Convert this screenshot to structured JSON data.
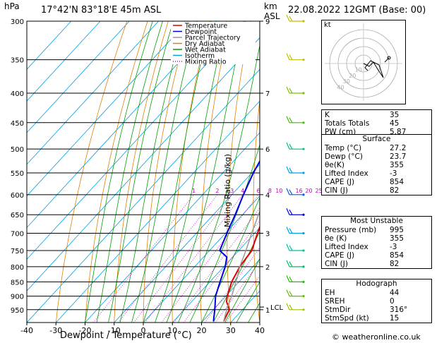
{
  "header": {
    "pressure_unit": "hPa",
    "location": "17°42'N  83°18'E  45m  ASL",
    "km_label": "km",
    "asl_label": "ASL",
    "datetime": "22.08.2022  12GMT  (Base: 00)"
  },
  "legend": [
    {
      "label": "Temperature",
      "color": "#e00000",
      "style": "solid"
    },
    {
      "label": "Dewpoint",
      "color": "#0000e0",
      "style": "solid"
    },
    {
      "label": "Parcel Trajectory",
      "color": "#999999",
      "style": "solid"
    },
    {
      "label": "Dry Adiabat",
      "color": "#e08000",
      "style": "solid"
    },
    {
      "label": "Wet Adiabat",
      "color": "#00a000",
      "style": "solid"
    },
    {
      "label": "Isotherm",
      "color": "#00a0e0",
      "style": "solid"
    },
    {
      "label": "Mixing Ratio",
      "color": "#c000c0",
      "style": "dotted"
    }
  ],
  "chart_data": {
    "type": "line",
    "subtype": "skew-t log-p",
    "xlabel": "Dewpoint / Temperature (°C)",
    "ylabel_left": "hPa",
    "ylabel_right": "Mixing Ratio (g/kg)",
    "x_ticks": [
      "-40",
      "-30",
      "-20",
      "-10",
      "0",
      "10",
      "20",
      "30",
      "40"
    ],
    "x_tick_values": [
      -40,
      -30,
      -20,
      -10,
      0,
      10,
      20,
      30,
      40
    ],
    "pressure_levels": [
      300,
      350,
      400,
      450,
      500,
      550,
      600,
      650,
      700,
      750,
      800,
      850,
      900,
      950
    ],
    "pressure_labels": [
      "300",
      "350",
      "400",
      "450",
      "500",
      "550",
      "600",
      "650",
      "700",
      "750",
      "800",
      "850",
      "900",
      "950"
    ],
    "km_ticks": [
      {
        "p": 300,
        "km": "9"
      },
      {
        "p": 400,
        "km": "7"
      },
      {
        "p": 500,
        "km": "6"
      },
      {
        "p": 600,
        "km": "4"
      },
      {
        "p": 700,
        "km": "3"
      },
      {
        "p": 800,
        "km": "2"
      },
      {
        "p": 950,
        "km": "1"
      }
    ],
    "lcl_label": "LCL",
    "lcl_pressure": 940,
    "mixing_ratio_labels": [
      "1",
      "2",
      "3",
      "4",
      "6",
      "8",
      "10",
      "16",
      "20",
      "25"
    ],
    "mixing_ratio_values": [
      1,
      2,
      3,
      4,
      6,
      8,
      10,
      16,
      20,
      25
    ],
    "series": [
      {
        "name": "Temperature",
        "color": "#e00000",
        "points": [
          [
            995,
            27.2
          ],
          [
            950,
            25.5
          ],
          [
            920,
            22
          ],
          [
            900,
            20.5
          ],
          [
            850,
            17.5
          ],
          [
            800,
            15.5
          ],
          [
            750,
            14.5
          ],
          [
            700,
            11
          ],
          [
            650,
            7.5
          ],
          [
            600,
            4
          ],
          [
            550,
            -1
          ],
          [
            500,
            -6
          ],
          [
            450,
            -10.5
          ],
          [
            420,
            -16
          ],
          [
            400,
            -20
          ],
          [
            370,
            -24.5
          ]
        ]
      },
      {
        "name": "Dewpoint",
        "color": "#0000e0",
        "points": [
          [
            995,
            23.7
          ],
          [
            950,
            20.5
          ],
          [
            900,
            16.5
          ],
          [
            850,
            13.5
          ],
          [
            800,
            10.5
          ],
          [
            770,
            8
          ],
          [
            750,
            3.5
          ],
          [
            700,
            0.5
          ],
          [
            650,
            -2.5
          ],
          [
            600,
            -6
          ],
          [
            550,
            -9.5
          ],
          [
            500,
            -12.5
          ],
          [
            450,
            -17
          ],
          [
            420,
            -22
          ],
          [
            400,
            -28
          ],
          [
            380,
            -28
          ],
          [
            360,
            -31
          ],
          [
            320,
            -37
          ],
          [
            300,
            -39
          ]
        ]
      },
      {
        "name": "Parcel Trajectory",
        "color": "#999999",
        "points": [
          [
            995,
            27.2
          ],
          [
            940,
            24
          ],
          [
            900,
            22
          ],
          [
            850,
            19
          ],
          [
            800,
            15.5
          ],
          [
            750,
            12.5
          ],
          [
            700,
            9
          ],
          [
            650,
            5.5
          ],
          [
            600,
            2
          ],
          [
            550,
            -2
          ],
          [
            500,
            -6.5
          ],
          [
            450,
            -12
          ],
          [
            400,
            -18.5
          ],
          [
            370,
            -23
          ]
        ]
      }
    ]
  },
  "hodograph": {
    "label": "kt",
    "ring_labels": [
      "10",
      "20",
      "30",
      "40"
    ]
  },
  "indices": [
    {
      "label": "K",
      "value": "35"
    },
    {
      "label": "Totals Totals",
      "value": "45"
    },
    {
      "label": "PW (cm)",
      "value": "5.87"
    }
  ],
  "surface": {
    "title": "Surface",
    "rows": [
      {
        "label": "Temp (°C)",
        "value": "27.2"
      },
      {
        "label": "Dewp (°C)",
        "value": "23.7"
      },
      {
        "label": "θe(K)",
        "value": "355"
      },
      {
        "label": "Lifted Index",
        "value": "-3"
      },
      {
        "label": "CAPE (J)",
        "value": "854"
      },
      {
        "label": "CIN (J)",
        "value": "82"
      }
    ]
  },
  "most_unstable": {
    "title": "Most Unstable",
    "rows": [
      {
        "label": "Pressure (mb)",
        "value": "995"
      },
      {
        "label": "θe (K)",
        "value": "355"
      },
      {
        "label": "Lifted Index",
        "value": "-3"
      },
      {
        "label": "CAPE (J)",
        "value": "854"
      },
      {
        "label": "CIN (J)",
        "value": "82"
      }
    ]
  },
  "hodograph_table": {
    "title": "Hodograph",
    "rows": [
      {
        "label": "EH",
        "value": "44"
      },
      {
        "label": "SREH",
        "value": "0"
      },
      {
        "label": "StmDir",
        "value": "316°"
      },
      {
        "label": "StmSpd (kt)",
        "value": "15"
      }
    ]
  },
  "copyright": "© weatheronline.co.uk"
}
